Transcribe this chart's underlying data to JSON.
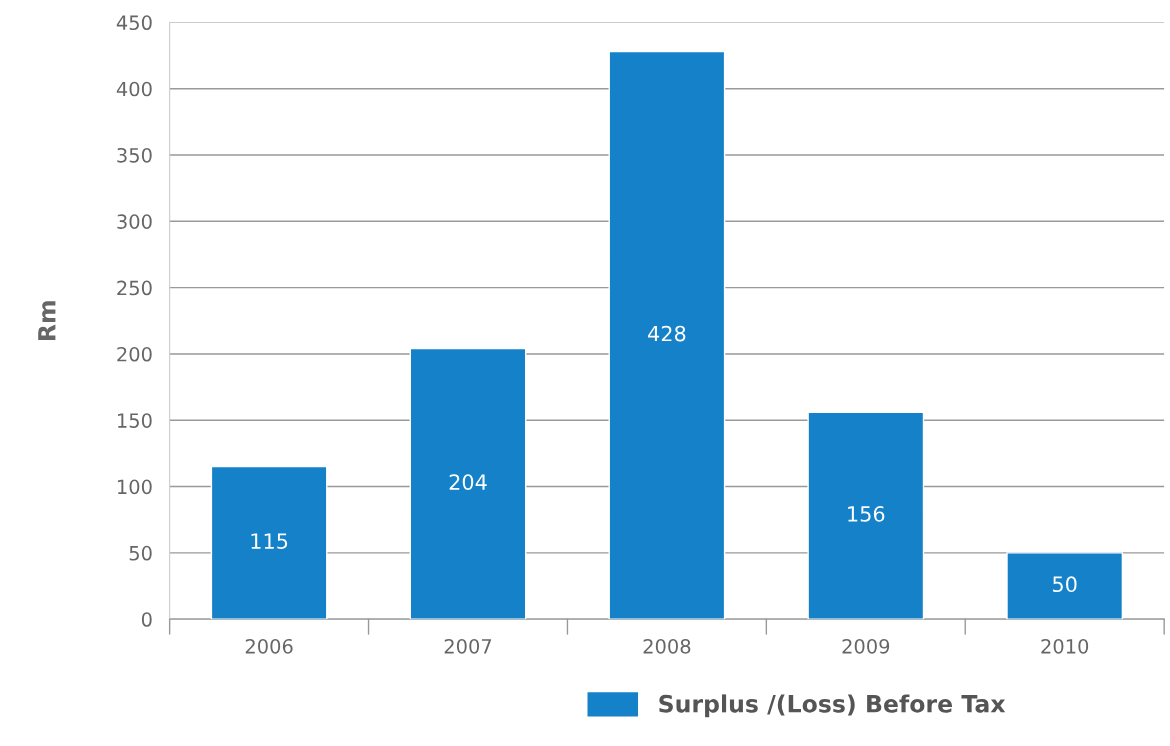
{
  "chart_data": {
    "type": "bar",
    "ylabel": "Rm",
    "categories": [
      "2006",
      "2007",
      "2008",
      "2009",
      "2010"
    ],
    "series": [
      {
        "name": "Surplus /(Loss) Before Tax",
        "color": "#1581c8",
        "values": [
          115,
          204,
          428,
          156,
          50
        ]
      }
    ],
    "ylim": [
      0,
      450
    ],
    "yticks": [
      0,
      50,
      100,
      150,
      200,
      250,
      300,
      350,
      400,
      450
    ],
    "grid": "y",
    "legend": "bottom",
    "data_labels": true
  }
}
